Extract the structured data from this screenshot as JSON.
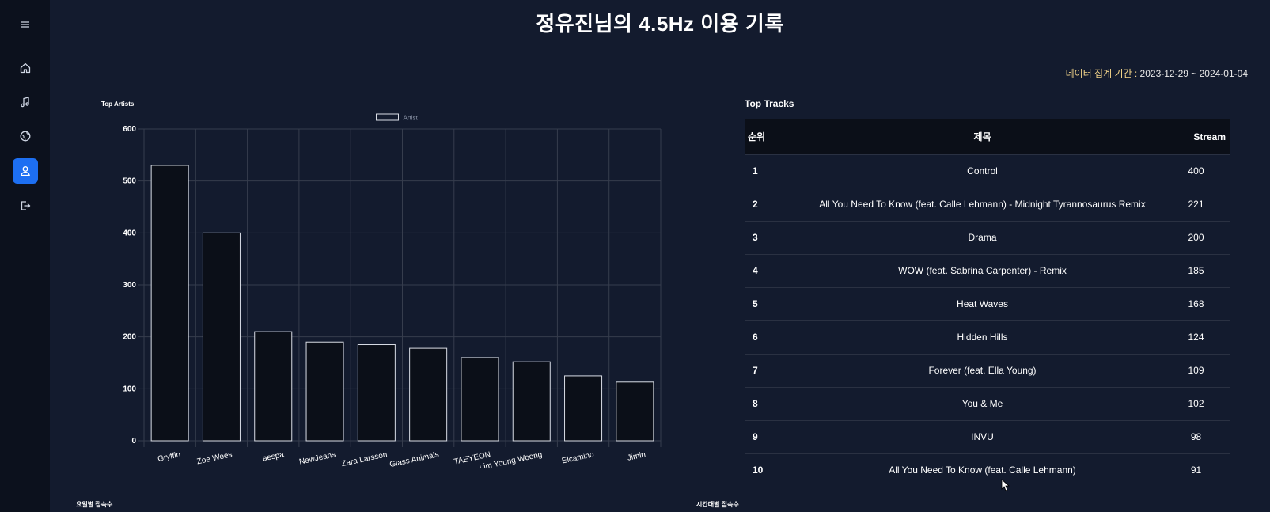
{
  "page": {
    "title": "정유진님의 4.5Hz 이용 기록",
    "period_label": "데이터 집계 기간 :",
    "period_value": "2023-12-29 ~ 2024-01-04"
  },
  "sidebar": {
    "items": [
      {
        "icon": "menu-icon"
      },
      {
        "icon": "home-icon"
      },
      {
        "icon": "music-note-icon"
      },
      {
        "icon": "globe-icon"
      },
      {
        "icon": "user-icon",
        "active": true
      },
      {
        "icon": "logout-icon"
      }
    ],
    "accent": "#1d6ff2"
  },
  "artists_chart": {
    "title": "Top Artists",
    "legend": "Artist"
  },
  "chart_data": {
    "type": "bar",
    "title": "Top Artists",
    "categories": [
      "Gryffin",
      "Zoe Wees",
      "aespa",
      "NewJeans",
      "Zara Larsson",
      "Glass Animals",
      "TAEYEON",
      "Lim Young Woong",
      "Elcamino",
      "Jimin"
    ],
    "series": [
      {
        "name": "Artist",
        "values": [
          530,
          400,
          210,
          190,
          185,
          178,
          160,
          152,
          125,
          113
        ]
      }
    ],
    "yticks": [
      "0",
      "100",
      "200",
      "300",
      "400",
      "500",
      "600"
    ],
    "ylim": [
      0,
      600
    ],
    "grid": true,
    "legend_position": "top-center"
  },
  "tracks": {
    "title": "Top Tracks",
    "headers": {
      "rank": "순위",
      "title": "제목",
      "stream": "Stream"
    },
    "rows": [
      {
        "rank": "1",
        "title": "Control",
        "stream": "400"
      },
      {
        "rank": "2",
        "title": "All You Need To Know (feat. Calle Lehmann) - Midnight Tyrannosaurus Remix",
        "stream": "221"
      },
      {
        "rank": "3",
        "title": "Drama",
        "stream": "200"
      },
      {
        "rank": "4",
        "title": "WOW (feat. Sabrina Carpenter) - Remix",
        "stream": "185"
      },
      {
        "rank": "5",
        "title": "Heat Waves",
        "stream": "168"
      },
      {
        "rank": "6",
        "title": "Hidden Hills",
        "stream": "124"
      },
      {
        "rank": "7",
        "title": "Forever (feat. Ella Young)",
        "stream": "109"
      },
      {
        "rank": "8",
        "title": "You & Me",
        "stream": "102"
      },
      {
        "rank": "9",
        "title": "INVU",
        "stream": "98"
      },
      {
        "rank": "10",
        "title": "All You Need To Know (feat. Calle Lehmann)",
        "stream": "91"
      }
    ]
  },
  "footer": {
    "weekday_label": "요일별 접속수",
    "hour_label": "시간대별 접속수"
  }
}
